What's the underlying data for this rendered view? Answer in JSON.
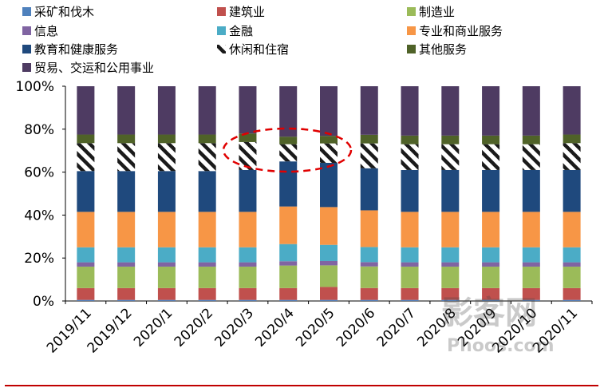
{
  "chart_data": {
    "type": "bar",
    "stacked": true,
    "percent": true,
    "categories": [
      "2019/11",
      "2019/12",
      "2020/1",
      "2020/2",
      "2020/3",
      "2020/4",
      "2020/5",
      "2020/6",
      "2020/7",
      "2020/8",
      "2020/9",
      "2020/10",
      "2020/11"
    ],
    "yticks": [
      "0%",
      "20%",
      "40%",
      "60%",
      "80%",
      "100%"
    ],
    "ylim": [
      0,
      100
    ],
    "legend_position": "top",
    "series": [
      {
        "name": "采矿和伐木",
        "color": "#4f81bd",
        "values": [
          0.5,
          0.5,
          0.5,
          0.5,
          0.5,
          0.5,
          0.5,
          0.5,
          0.5,
          0.5,
          0.5,
          0.5,
          0.5
        ]
      },
      {
        "name": "建筑业",
        "color": "#c0504d",
        "values": [
          5.5,
          5.5,
          5.5,
          5.5,
          5.5,
          5.5,
          6,
          5.5,
          5.5,
          5.5,
          5.5,
          5.5,
          5.5
        ]
      },
      {
        "name": "制造业",
        "color": "#9bbb59",
        "values": [
          10,
          10,
          10,
          10,
          10,
          10.5,
          10,
          10,
          10,
          10,
          10,
          10,
          10
        ]
      },
      {
        "name": "信息",
        "color": "#8064a2",
        "values": [
          2,
          2,
          2,
          2,
          2,
          2,
          2,
          2,
          2,
          2,
          2,
          2,
          2
        ]
      },
      {
        "name": "金融",
        "color": "#4bacc6",
        "values": [
          7,
          7,
          7,
          7,
          7,
          8,
          7.5,
          7,
          7,
          7,
          7,
          7,
          7
        ]
      },
      {
        "name": "专业和商业服务",
        "color": "#f79646",
        "values": [
          16.5,
          16.5,
          16.5,
          16.5,
          16.5,
          17.5,
          17.5,
          17,
          16.5,
          16.5,
          16.5,
          16.5,
          16.5
        ]
      },
      {
        "name": "教育和健康服务",
        "color": "#1f497d",
        "values": [
          19,
          19,
          19,
          19,
          19.5,
          21,
          20.5,
          19.5,
          19.5,
          19.5,
          19.5,
          19.5,
          19.5
        ]
      },
      {
        "name": "休闲和住宿",
        "color": "#404040",
        "pattern": "hatch",
        "values": [
          13,
          13,
          13,
          13,
          13,
          8,
          9,
          11.5,
          12,
          12,
          12,
          12,
          12.5
        ]
      },
      {
        "name": "其他服务",
        "color": "#4f6228",
        "values": [
          4,
          4,
          4,
          4,
          4,
          3.5,
          3.5,
          4,
          4,
          4,
          4,
          4,
          4
        ]
      },
      {
        "name": "贸易、交运和公用事业",
        "color": "#4e3b62",
        "values": [
          22.5,
          22.5,
          22.5,
          22.5,
          22,
          23.5,
          23,
          22.5,
          23,
          23,
          23,
          23,
          22.5
        ]
      }
    ],
    "annotation": {
      "shape": "dashed-ellipse",
      "color": "#e00000",
      "targets": [
        "2020/4",
        "2020/5"
      ],
      "series": "休闲和住宿"
    }
  },
  "watermark": {
    "text": "影客网",
    "subtext": "Phoos.com"
  }
}
